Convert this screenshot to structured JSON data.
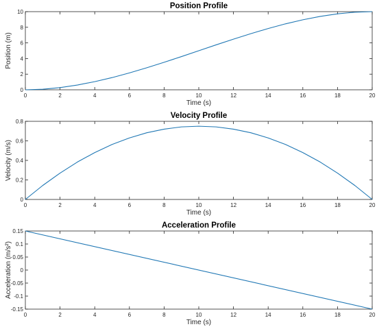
{
  "chart_data": [
    {
      "type": "line",
      "title": "Position Profile",
      "xlabel": "Time (s)",
      "ylabel": "Position (m)",
      "xlim": [
        0,
        20
      ],
      "ylim": [
        0,
        10
      ],
      "xticks": [
        "0",
        "2",
        "4",
        "6",
        "8",
        "10",
        "12",
        "14",
        "16",
        "18",
        "20"
      ],
      "yticks": [
        "0",
        "2",
        "4",
        "6",
        "8",
        "10"
      ],
      "grid": false,
      "series": [
        {
          "color": "#1f77b4",
          "x": [
            0,
            1,
            2,
            3,
            4,
            5,
            6,
            7,
            8,
            9,
            10,
            11,
            12,
            13,
            14,
            15,
            16,
            17,
            18,
            19,
            20
          ],
          "y": [
            0,
            0.07,
            0.28,
            0.61,
            1.04,
            1.56,
            2.16,
            2.82,
            3.52,
            4.25,
            5.0,
            5.75,
            6.48,
            7.18,
            7.84,
            8.44,
            8.96,
            9.39,
            9.72,
            9.93,
            10.0
          ]
        }
      ]
    },
    {
      "type": "line",
      "title": "Velocity Profile",
      "xlabel": "Time (s)",
      "ylabel": "Velocity (m/s)",
      "xlim": [
        0,
        20
      ],
      "ylim": [
        0,
        0.8
      ],
      "xticks": [
        "0",
        "2",
        "4",
        "6",
        "8",
        "10",
        "12",
        "14",
        "16",
        "18",
        "20"
      ],
      "yticks": [
        "0",
        "0.2",
        "0.4",
        "0.6",
        "0.8"
      ],
      "grid": false,
      "series": [
        {
          "color": "#1f77b4",
          "x": [
            0,
            1,
            2,
            3,
            4,
            5,
            6,
            7,
            8,
            9,
            10,
            11,
            12,
            13,
            14,
            15,
            16,
            17,
            18,
            19,
            20
          ],
          "y": [
            0,
            0.143,
            0.27,
            0.383,
            0.48,
            0.563,
            0.63,
            0.683,
            0.72,
            0.743,
            0.75,
            0.743,
            0.72,
            0.683,
            0.63,
            0.563,
            0.48,
            0.383,
            0.27,
            0.143,
            0
          ]
        }
      ]
    },
    {
      "type": "line",
      "title": "Acceleration Profile",
      "xlabel": "Time (s)",
      "ylabel": "Acceleration (m/s²)",
      "xlim": [
        0,
        20
      ],
      "ylim": [
        -0.15,
        0.15
      ],
      "xticks": [
        "0",
        "2",
        "4",
        "6",
        "8",
        "10",
        "12",
        "14",
        "16",
        "18",
        "20"
      ],
      "yticks": [
        "-0.15",
        "-0.1",
        "-0.05",
        "0",
        "0.05",
        "0.1",
        "0.15"
      ],
      "grid": false,
      "series": [
        {
          "color": "#1f77b4",
          "x": [
            0,
            20
          ],
          "y": [
            0.15,
            -0.15
          ]
        }
      ]
    }
  ]
}
